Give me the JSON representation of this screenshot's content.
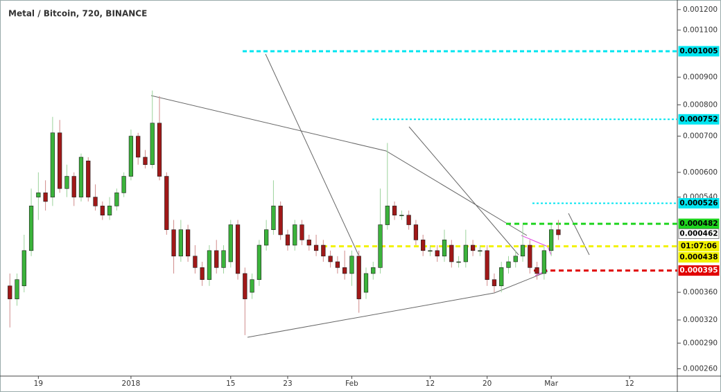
{
  "chart_data": {
    "type": "candlestick",
    "title": "Metal / Bitcoin, 720, BINANCE",
    "log_scale": true,
    "grid": false,
    "up_color": "#3bb33b",
    "down_color": "#a01818",
    "x": [
      0,
      1,
      2,
      3,
      4,
      5,
      6,
      7,
      8,
      9,
      10,
      11,
      12,
      13,
      14,
      15,
      16,
      17,
      18,
      19,
      20,
      21,
      22,
      23,
      24,
      25,
      26,
      27,
      28,
      29,
      30,
      31,
      32,
      33,
      34,
      35,
      36,
      37,
      38,
      39,
      40,
      41,
      42,
      43,
      44,
      45,
      46,
      47,
      48,
      49,
      50,
      51,
      52,
      53,
      54,
      55,
      56,
      57,
      58,
      59,
      60,
      61,
      62,
      63,
      64,
      65,
      66,
      67,
      68,
      69,
      70,
      71,
      72,
      73,
      74,
      75,
      76,
      77
    ],
    "open": [
      0.00037,
      0.00035,
      0.00037,
      0.00043,
      0.00054,
      0.00055,
      0.00054,
      0.00071,
      0.00056,
      0.00059,
      0.00054,
      0.00063,
      0.00054,
      0.00052,
      0.0005,
      0.00052,
      0.00055,
      0.00059,
      0.0007,
      0.00064,
      0.00062,
      0.00074,
      0.00059,
      0.00047,
      0.00042,
      0.00047,
      0.00042,
      0.0004,
      0.00038,
      0.00043,
      0.0004,
      0.00041,
      0.00048,
      0.00039,
      0.00036,
      0.00038,
      0.00044,
      0.00047,
      0.00052,
      0.00046,
      0.00044,
      0.00048,
      0.00045,
      0.00044,
      0.00044,
      0.00042,
      0.00041,
      0.0004,
      0.00039,
      0.00042,
      0.00036,
      0.00039,
      0.0004,
      0.00048,
      0.00052,
      0.0005,
      0.0005,
      0.00048,
      0.00045,
      0.00043,
      0.00043,
      0.00042,
      0.00044,
      0.00041,
      0.00041,
      0.00044,
      0.00043,
      0.00043,
      0.00038,
      0.00037,
      0.0004,
      0.00041,
      0.00042,
      0.00044,
      0.0004,
      0.00039,
      0.00043,
      0.00047
    ],
    "high": [
      0.00039,
      0.00039,
      0.00046,
      0.00056,
      0.0006,
      0.00058,
      0.00076,
      0.00075,
      0.00062,
      0.0006,
      0.00065,
      0.00064,
      0.00057,
      0.00053,
      0.00054,
      0.00056,
      0.0006,
      0.00072,
      0.00071,
      0.00066,
      0.00085,
      0.00083,
      0.0006,
      0.00049,
      0.00049,
      0.00048,
      0.00044,
      0.00041,
      0.00044,
      0.00045,
      0.00044,
      0.00049,
      0.00049,
      0.0004,
      0.00039,
      0.00045,
      0.00049,
      0.00058,
      0.00053,
      0.00047,
      0.00049,
      0.00049,
      0.00046,
      0.00046,
      0.00045,
      0.00043,
      0.00042,
      0.00043,
      0.00043,
      0.00043,
      0.0004,
      0.00041,
      0.00056,
      0.00068,
      0.00053,
      0.00051,
      0.00051,
      0.00049,
      0.00046,
      0.00044,
      0.00044,
      0.00047,
      0.00045,
      0.00042,
      0.00047,
      0.00045,
      0.00044,
      0.00044,
      0.00039,
      0.00041,
      0.00042,
      0.00043,
      0.00048,
      0.00045,
      0.00041,
      0.00044,
      0.00048,
      0.00049
    ],
    "low": [
      0.00031,
      0.00034,
      0.00036,
      0.00042,
      0.00049,
      0.00051,
      0.00052,
      0.00055,
      0.00054,
      0.00052,
      0.00053,
      0.00053,
      0.00051,
      0.00049,
      0.00049,
      0.00051,
      0.00054,
      0.00058,
      0.00062,
      0.00061,
      0.00061,
      0.00058,
      0.00046,
      0.00039,
      0.00041,
      0.00041,
      0.00039,
      0.00037,
      0.00037,
      0.00039,
      0.00039,
      0.0004,
      0.00038,
      0.0003,
      0.00035,
      0.00037,
      0.00043,
      0.00046,
      0.00045,
      0.00043,
      0.00043,
      0.00044,
      0.00043,
      0.00042,
      0.00041,
      0.0004,
      0.00039,
      0.00038,
      0.00037,
      0.00033,
      0.00035,
      0.00038,
      0.00039,
      0.00047,
      0.00049,
      0.00049,
      0.00047,
      0.00044,
      0.00042,
      0.00042,
      0.00041,
      0.00041,
      0.0004,
      0.0004,
      0.0004,
      0.00042,
      0.00042,
      0.00037,
      0.00036,
      0.00036,
      0.00039,
      0.0004,
      0.00041,
      0.00039,
      0.00038,
      0.00038,
      0.00042,
      0.00045
    ],
    "close": [
      0.00035,
      0.00038,
      0.00043,
      0.00052,
      0.00055,
      0.00053,
      0.00071,
      0.00056,
      0.00059,
      0.00054,
      0.00064,
      0.00054,
      0.00052,
      0.0005,
      0.00052,
      0.00055,
      0.00059,
      0.0007,
      0.00064,
      0.00062,
      0.00074,
      0.00059,
      0.00047,
      0.00042,
      0.00047,
      0.00042,
      0.0004,
      0.00038,
      0.00043,
      0.0004,
      0.00043,
      0.00048,
      0.00039,
      0.00035,
      0.00038,
      0.00044,
      0.00047,
      0.00052,
      0.00046,
      0.00044,
      0.00048,
      0.00045,
      0.00044,
      0.00043,
      0.00042,
      0.00041,
      0.0004,
      0.00039,
      0.00042,
      0.00035,
      0.00039,
      0.0004,
      0.00048,
      0.00052,
      0.0005,
      0.0005,
      0.00048,
      0.00045,
      0.00043,
      0.00043,
      0.00042,
      0.00045,
      0.00041,
      0.00041,
      0.00044,
      0.00043,
      0.00043,
      0.00038,
      0.00037,
      0.0004,
      0.00041,
      0.00042,
      0.00044,
      0.0004,
      0.00039,
      0.00043,
      0.00047,
      0.00046
    ],
    "xlim": [
      -0.9,
      93.7
    ],
    "xticks": [
      {
        "value": 4,
        "label": "19"
      },
      {
        "value": 17,
        "label": "2018"
      },
      {
        "value": 31,
        "label": "15"
      },
      {
        "value": 39,
        "label": "23"
      },
      {
        "value": 48,
        "label": "Feb"
      },
      {
        "value": 59,
        "label": "12"
      },
      {
        "value": 67,
        "label": "20"
      },
      {
        "value": 76,
        "label": "Mar"
      },
      {
        "value": 87,
        "label": "12"
      }
    ],
    "ylim": [
      0.000252,
      0.00125
    ],
    "yticks": [
      {
        "value": 0.0012,
        "label": "0.001200"
      },
      {
        "value": 0.0011,
        "label": "0.001100"
      },
      {
        "value": 0.0009,
        "label": "0.000900"
      },
      {
        "value": 0.0008,
        "label": "0.000800"
      },
      {
        "value": 0.0007,
        "label": "0.000700"
      },
      {
        "value": 0.0006,
        "label": "0.000600"
      },
      {
        "value": 0.00054,
        "label": "0.000540"
      },
      {
        "value": 0.00036,
        "label": "0.000360"
      },
      {
        "value": 0.00032,
        "label": "0.000320"
      },
      {
        "value": 0.00029,
        "label": "0.000290"
      },
      {
        "value": 0.00026,
        "label": "0.000260"
      }
    ],
    "levels": [
      {
        "value": 0.001005,
        "color": "#00e5f0"
      },
      {
        "value": 0.000752,
        "color": "#00e5f0"
      },
      {
        "value": 0.000526,
        "color": "#00e5f0"
      },
      {
        "value": 0.000482,
        "color": "#1ed41e"
      },
      {
        "value": 0.000438,
        "color": "#f2f200"
      },
      {
        "value": 0.000395,
        "color": "#e00000"
      }
    ],
    "last_price": 0.000462,
    "countdown": "01:07:06"
  }
}
